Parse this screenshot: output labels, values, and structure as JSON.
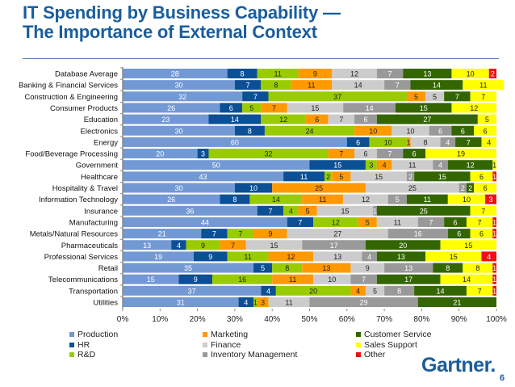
{
  "header": {
    "title_line1": "IT Spending by Business Capability —",
    "title_line2": "The Importance of External Context"
  },
  "footer": {
    "logo": "Gartner.",
    "page_number": "6"
  },
  "chart_data": {
    "type": "bar",
    "orientation": "horizontal",
    "stacked": "percent",
    "title": "IT Spending by Business Capability — The Importance of External Context",
    "xlabel": "",
    "ylabel": "",
    "xlim": [
      0,
      100
    ],
    "x_ticks": [
      "0%",
      "10%",
      "20%",
      "30%",
      "40%",
      "50%",
      "60%",
      "70%",
      "80%",
      "90%",
      "100%"
    ],
    "grid": false,
    "legend_position": "bottom",
    "categories": [
      "Database Average",
      "Banking & Financial Services",
      "Construction & Engineering",
      "Consumer Products",
      "Education",
      "Electronics",
      "Energy",
      "Food/Beverage Processing",
      "Government",
      "Healthcare",
      "Hospitality & Travel",
      "Information Technology",
      "Insurance",
      "Manufacturing",
      "Metals/Natural Resources",
      "Pharmaceuticals",
      "Professional Services",
      "Retail",
      "Telecommunications",
      "Transportation",
      "Utilities"
    ],
    "series": [
      {
        "name": "Production",
        "color": "#7399d4",
        "label_color": "#ffffff",
        "values": [
          28,
          30,
          32,
          26,
          23,
          30,
          60,
          20,
          50,
          43,
          30,
          26,
          36,
          44,
          21,
          13,
          19,
          35,
          15,
          37,
          31
        ]
      },
      {
        "name": "HR",
        "color": "#0b4f95",
        "label_color": "#ffffff",
        "values": [
          8,
          7,
          7,
          6,
          14,
          8,
          6,
          3,
          15,
          11,
          10,
          8,
          7,
          7,
          7,
          4,
          9,
          5,
          9,
          4,
          4
        ]
      },
      {
        "name": "R&D",
        "color": "#99cc00",
        "label_color": "#222222",
        "values": [
          11,
          8,
          37,
          5,
          12,
          24,
          10,
          32,
          3,
          2,
          0,
          14,
          4,
          12,
          7,
          9,
          11,
          8,
          16,
          20,
          1
        ]
      },
      {
        "name": "Marketing",
        "color": "#ff9900",
        "label_color": "#222222",
        "values": [
          9,
          11,
          5,
          7,
          6,
          10,
          1,
          7,
          4,
          5,
          25,
          11,
          5,
          5,
          9,
          7,
          12,
          13,
          11,
          4,
          3
        ]
      },
      {
        "name": "Finance",
        "color": "#cccccc",
        "label_color": "#222222",
        "values": [
          12,
          14,
          5,
          15,
          7,
          10,
          8,
          6,
          11,
          15,
          25,
          12,
          15,
          11,
          27,
          15,
          13,
          9,
          10,
          5,
          11
        ]
      },
      {
        "name": "Inventory Management",
        "color": "#999999",
        "label_color": "#ffffff",
        "values": [
          7,
          7,
          0,
          14,
          6,
          6,
          4,
          7,
          4,
          2,
          2,
          5,
          1,
          7,
          16,
          17,
          4,
          13,
          7,
          8,
          29
        ]
      },
      {
        "name": "Customer Service",
        "color": "#336600",
        "label_color": "#ffffff",
        "values": [
          13,
          14,
          7,
          15,
          27,
          6,
          7,
          6,
          12,
          15,
          2,
          11,
          25,
          6,
          6,
          20,
          13,
          8,
          17,
          14,
          21
        ]
      },
      {
        "name": "Sales Support",
        "color": "#ffff00",
        "label_color": "#222222",
        "values": [
          10,
          11,
          7,
          12,
          5,
          6,
          4,
          19,
          1,
          6,
          6,
          10,
          7,
          7,
          6,
          15,
          15,
          8,
          14,
          7,
          0
        ]
      },
      {
        "name": "Other",
        "color": "#ee1111",
        "label_color": "#ffffff",
        "values": [
          2,
          0,
          0,
          0,
          0,
          0,
          0,
          0,
          0,
          1,
          0,
          3,
          0,
          1,
          1,
          0,
          4,
          1,
          1,
          1,
          0
        ]
      }
    ]
  }
}
